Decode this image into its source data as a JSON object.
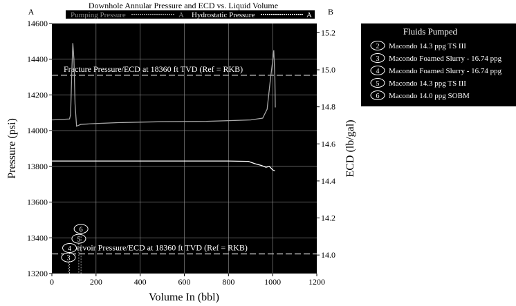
{
  "chart_data": {
    "type": "line",
    "title": "Downhole Annular Pressure and ECD vs. Liquid Volume",
    "xlabel": "Volume In (bbl)",
    "ylabel_left": "Pressure (psi)",
    "ylabel_right": "ECD (lb/gal)",
    "axis_tag_left": "A",
    "axis_tag_right": "B",
    "xlim": [
      0,
      1200
    ],
    "ylim_left": [
      13200,
      14600
    ],
    "ylim_right": [
      13.9,
      15.25
    ],
    "x_ticks": [
      "0",
      "200",
      "400",
      "600",
      "800",
      "1000",
      "1200"
    ],
    "y_left_ticks": [
      "13200",
      "13400",
      "13600",
      "13800",
      "14000",
      "14200",
      "14400",
      "14600"
    ],
    "y_right_ticks": [
      "14.0",
      "14.2",
      "14.4",
      "14.6",
      "14.8",
      "15.0",
      "15.2"
    ],
    "grid": true,
    "background": "#000000",
    "foreground": "#ffffff",
    "legend": {
      "placement": "top",
      "entries": [
        {
          "label": "Pumping Pressure",
          "axis_tag": "A"
        },
        {
          "label": "Hydrostatic Pressure",
          "axis_tag": "A"
        }
      ]
    },
    "series": [
      {
        "name": "Pumping Pressure",
        "points": [
          [
            0,
            14060
          ],
          [
            80,
            14065
          ],
          [
            85,
            14090
          ],
          [
            90,
            14320
          ],
          [
            95,
            14490
          ],
          [
            100,
            14400
          ],
          [
            105,
            14150
          ],
          [
            112,
            14025
          ],
          [
            130,
            14035
          ],
          [
            200,
            14040
          ],
          [
            300,
            14045
          ],
          [
            500,
            14050
          ],
          [
            700,
            14052
          ],
          [
            900,
            14060
          ],
          [
            955,
            14070
          ],
          [
            975,
            14120
          ],
          [
            990,
            14290
          ],
          [
            1000,
            14390
          ],
          [
            1005,
            14450
          ],
          [
            1010,
            14300
          ],
          [
            1012,
            14130
          ]
        ]
      },
      {
        "name": "Hydrostatic Pressure",
        "points": [
          [
            0,
            13830
          ],
          [
            200,
            13830
          ],
          [
            400,
            13830
          ],
          [
            600,
            13830
          ],
          [
            800,
            13830
          ],
          [
            890,
            13828
          ],
          [
            920,
            13815
          ],
          [
            950,
            13805
          ],
          [
            970,
            13795
          ],
          [
            985,
            13800
          ],
          [
            1000,
            13780
          ],
          [
            1010,
            13775
          ]
        ]
      }
    ],
    "reference_lines": [
      {
        "label": "Fracture Pressure/ECD at 18360 ft TVD (Ref = RKB)",
        "y": 14310
      },
      {
        "label": "ervoir Pressure/ECD at 18360 ft TVD (Ref = RKB)",
        "y": 13310
      }
    ],
    "fluid_markers": [
      {
        "id": "3",
        "x": 75,
        "y": 13290
      },
      {
        "id": "4",
        "x": 80,
        "y": 13343
      },
      {
        "id": "5",
        "x": 122,
        "y": 13395
      },
      {
        "id": "6",
        "x": 132,
        "y": 13450
      }
    ],
    "fluids_panel": {
      "title": "Fluids Pumped",
      "items": [
        {
          "id": "2",
          "label": "Macondo 14.3 ppg TS III"
        },
        {
          "id": "3",
          "label": "Macondo Foamed Slurry - 16.74 ppg"
        },
        {
          "id": "4",
          "label": "Macondo Foamed Slurry - 16.74 ppg"
        },
        {
          "id": "5",
          "label": "Macondo 14.3 ppg TS III"
        },
        {
          "id": "6",
          "label": "Macondo 14.0 ppg SOBM"
        }
      ]
    }
  }
}
